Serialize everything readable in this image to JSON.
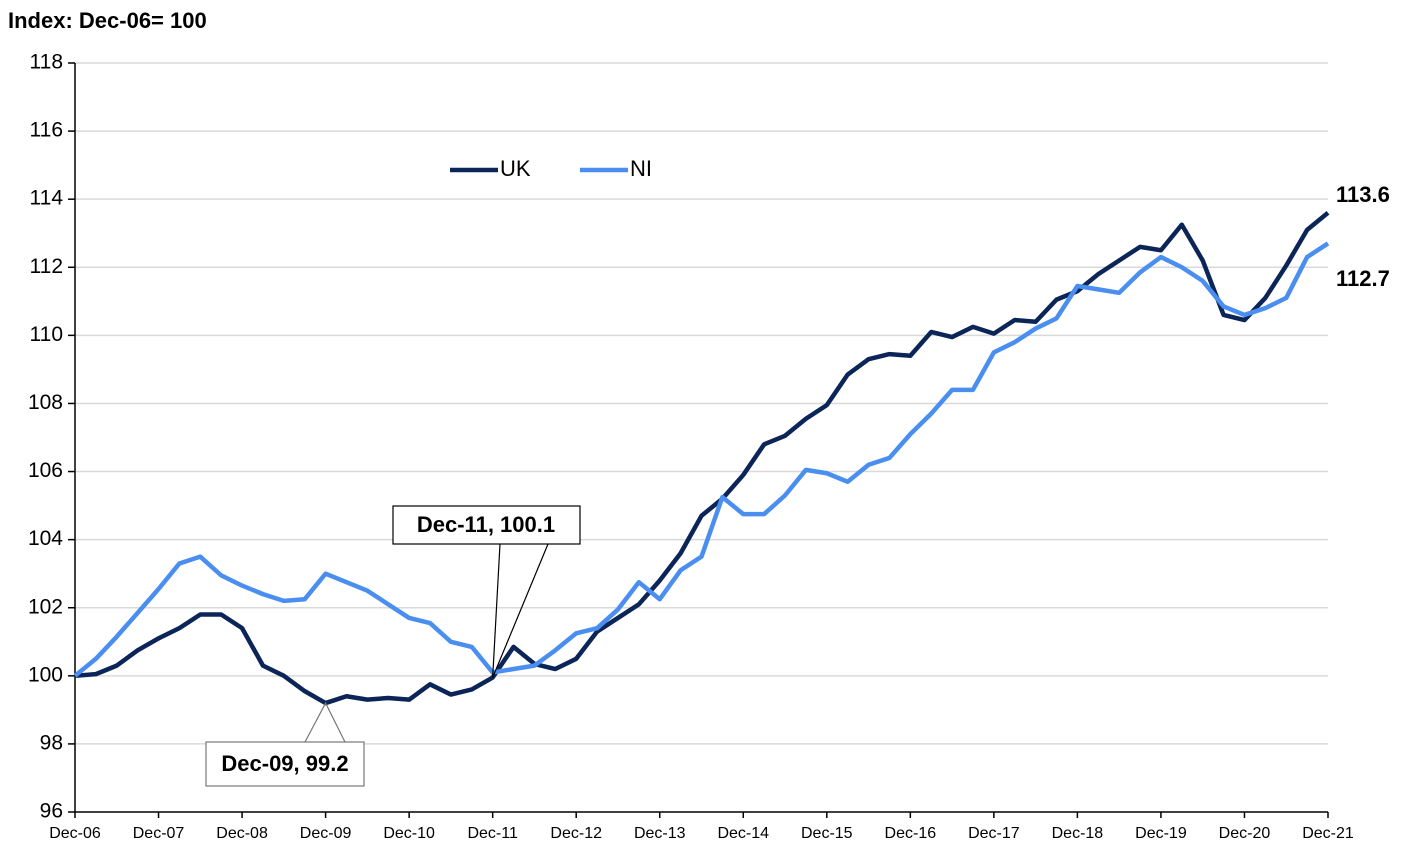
{
  "chart_data": {
    "type": "line",
    "y_label": "Index: Dec-06= 100",
    "categories": [
      "Dec-06",
      null,
      null,
      null,
      "Dec-07",
      null,
      null,
      null,
      "Dec-08",
      null,
      null,
      null,
      "Dec-09",
      null,
      null,
      null,
      "Dec-10",
      null,
      null,
      null,
      "Dec-11",
      null,
      null,
      null,
      "Dec-12",
      null,
      null,
      null,
      "Dec-13",
      null,
      null,
      null,
      "Dec-14",
      null,
      null,
      null,
      "Dec-15",
      null,
      null,
      null,
      "Dec-16",
      null,
      null,
      null,
      "Dec-17",
      null,
      null,
      null,
      "Dec-18",
      null,
      null,
      null,
      "Dec-19",
      null,
      null,
      null,
      "Dec-20",
      null,
      null,
      null,
      "Dec-21"
    ],
    "series": [
      {
        "name": "UK",
        "color": "#0b2559",
        "values": [
          100.0,
          100.05,
          100.3,
          100.75,
          101.1,
          101.4,
          101.8,
          101.8,
          101.4,
          100.3,
          100.0,
          99.55,
          99.2,
          99.4,
          99.3,
          99.35,
          99.3,
          99.75,
          99.45,
          99.6,
          99.95,
          100.85,
          100.35,
          100.2,
          100.5,
          101.3,
          101.7,
          102.1,
          102.8,
          103.6,
          104.7,
          105.2,
          105.9,
          106.8,
          107.05,
          107.55,
          107.95,
          108.85,
          109.3,
          109.45,
          109.4,
          110.1,
          109.95,
          110.25,
          110.05,
          110.45,
          110.4,
          111.05,
          111.3,
          111.8,
          112.2,
          112.6,
          112.5,
          113.25,
          112.2,
          110.6,
          110.45,
          111.1,
          112.05,
          113.1,
          113.6
        ]
      },
      {
        "name": "NI",
        "color": "#4a8ff0",
        "values": [
          100.0,
          100.5,
          101.15,
          101.85,
          102.55,
          103.3,
          103.5,
          102.95,
          102.65,
          102.4,
          102.2,
          102.25,
          103.0,
          102.75,
          102.5,
          102.1,
          101.7,
          101.55,
          101.0,
          100.85,
          100.1,
          100.2,
          100.3,
          100.75,
          101.25,
          101.4,
          101.95,
          102.75,
          102.25,
          103.1,
          103.5,
          105.25,
          104.75,
          104.75,
          105.3,
          106.05,
          105.95,
          105.7,
          106.2,
          106.4,
          107.1,
          107.7,
          108.4,
          108.4,
          109.5,
          109.8,
          110.2,
          110.5,
          111.45,
          111.35,
          111.25,
          111.85,
          112.3,
          112.0,
          111.6,
          110.85,
          110.6,
          110.8,
          111.1,
          112.3,
          112.7
        ]
      }
    ],
    "annotations": [
      {
        "text": "Dec-11, 100.1"
      },
      {
        "text": "Dec-09, 99.2"
      },
      {
        "text": "113.6"
      },
      {
        "text": "112.7"
      }
    ],
    "ylim": [
      96,
      118
    ],
    "yticks": [
      96,
      98,
      100,
      102,
      104,
      106,
      108,
      110,
      112,
      114,
      116,
      118
    ],
    "grid": true,
    "legend": "top"
  }
}
